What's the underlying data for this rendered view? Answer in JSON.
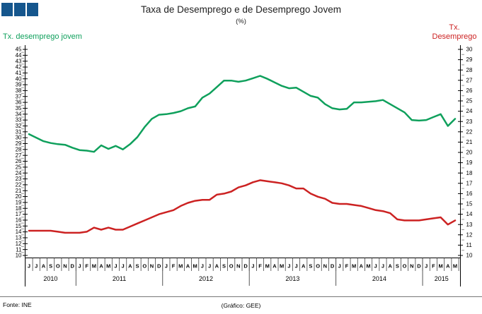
{
  "header": {
    "title": "Taxa de Desemprego e de Desemprego Jovem",
    "subtitle": "(%)"
  },
  "axes": {
    "left_label": "Tx. desemprego jovem",
    "right_label_line1": "Tx.",
    "right_label_line2": "Desemprego"
  },
  "footer": {
    "source": "Fonte: INE",
    "credit": "(Gráfico: GEE)"
  },
  "colors": {
    "green": "#0FA05C",
    "red": "#CC2222",
    "logo_blue": "#15568D",
    "axis": "#000000",
    "minor_tick": "#999999"
  },
  "chart_data": {
    "type": "line",
    "title": "Taxa de Desemprego e de Desemprego Jovem",
    "subtitle": "(%)",
    "grid": false,
    "legend_position": "axis-titles",
    "left_axis": {
      "label": "Tx. desemprego jovem",
      "min": 10,
      "max": 45,
      "step": 1
    },
    "right_axis": {
      "label": "Tx. Desemprego",
      "min": 10,
      "max": 30,
      "step": 1
    },
    "x_months": [
      "J",
      "J",
      "A",
      "S",
      "O",
      "N",
      "D",
      "J",
      "F",
      "M",
      "A",
      "M",
      "J",
      "J",
      "A",
      "S",
      "O",
      "N",
      "D",
      "J",
      "F",
      "M",
      "A",
      "M",
      "J",
      "J",
      "A",
      "S",
      "O",
      "N",
      "D",
      "J",
      "F",
      "M",
      "A",
      "M",
      "J",
      "J",
      "A",
      "S",
      "O",
      "N",
      "D",
      "J",
      "F",
      "M",
      "A",
      "M",
      "J",
      "J",
      "A",
      "S",
      "O",
      "N",
      "D",
      "J",
      "F",
      "M",
      "A",
      "M"
    ],
    "years": [
      {
        "label": "2010",
        "count": 7
      },
      {
        "label": "2011",
        "count": 12
      },
      {
        "label": "2012",
        "count": 12
      },
      {
        "label": "2013",
        "count": 12
      },
      {
        "label": "2014",
        "count": 12
      },
      {
        "label": "2015",
        "count": 5
      }
    ],
    "series": [
      {
        "name": "Tx. desemprego jovem",
        "axis": "left",
        "color": "#0FA05C",
        "values": [
          30.6,
          30.0,
          29.4,
          29.1,
          28.9,
          28.8,
          28.3,
          27.9,
          27.8,
          27.6,
          28.7,
          28.1,
          28.6,
          28.0,
          28.9,
          30.1,
          31.8,
          33.2,
          33.9,
          34.0,
          34.2,
          34.5,
          35.0,
          35.3,
          36.8,
          37.5,
          38.6,
          39.7,
          39.7,
          39.5,
          39.7,
          40.1,
          40.5,
          40.0,
          39.4,
          38.8,
          38.4,
          38.5,
          37.8,
          37.1,
          36.8,
          35.7,
          35.0,
          34.8,
          34.9,
          36.0,
          36.0,
          36.1,
          36.2,
          36.4,
          35.7,
          35.0,
          34.3,
          33.0,
          32.9,
          33.0,
          33.5,
          34.0,
          32.0,
          33.2
        ]
      },
      {
        "name": "Tx. Desemprego",
        "axis": "right",
        "color": "#CC2222",
        "values": [
          12.4,
          12.4,
          12.4,
          12.4,
          12.3,
          12.2,
          12.2,
          12.2,
          12.3,
          12.7,
          12.5,
          12.7,
          12.5,
          12.5,
          12.8,
          13.1,
          13.4,
          13.7,
          14.0,
          14.2,
          14.4,
          14.8,
          15.1,
          15.3,
          15.4,
          15.4,
          15.9,
          16.0,
          16.2,
          16.6,
          16.8,
          17.1,
          17.3,
          17.2,
          17.1,
          17.0,
          16.8,
          16.5,
          16.5,
          16.0,
          15.7,
          15.5,
          15.1,
          15.0,
          15.0,
          14.9,
          14.8,
          14.6,
          14.4,
          14.3,
          14.1,
          13.5,
          13.4,
          13.4,
          13.4,
          13.5,
          13.6,
          13.7,
          13.0,
          13.4
        ]
      }
    ]
  }
}
